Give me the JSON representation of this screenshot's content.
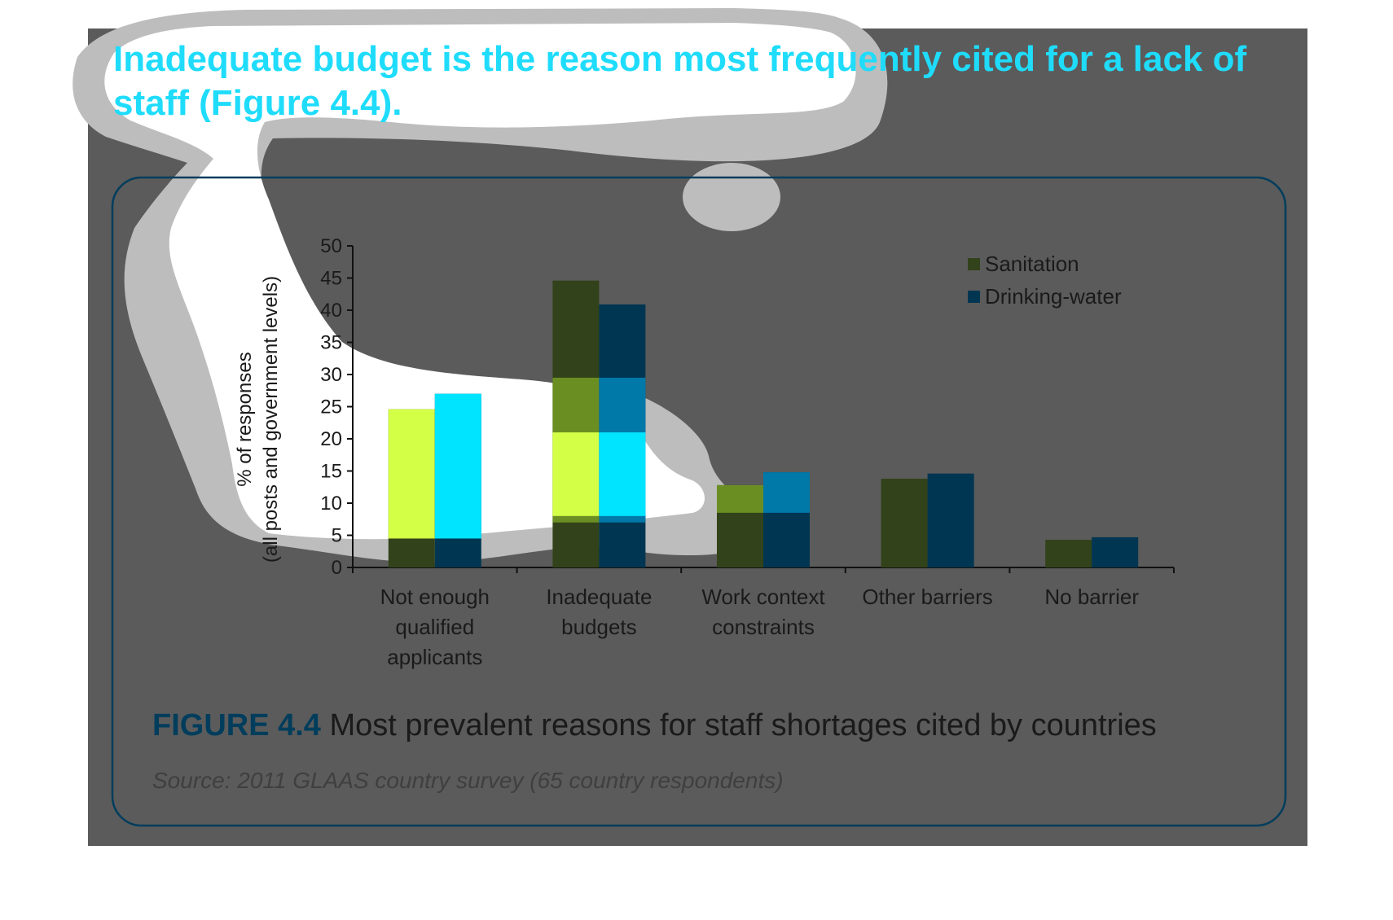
{
  "headline": "Inadequate budget is the reason most frequently cited for a lack of staff (Figure 4.4).",
  "figure": {
    "label": "FIGURE 4.4",
    "caption": " Most prevalent reasons for staff shortages cited by countries",
    "source": "Source: 2011 GLAAS country survey (65 country respondents)"
  },
  "colors": {
    "page_background": "#5b5b5b",
    "headline": "#1fdcfb",
    "panel_border": "#003d5c",
    "sanitation": "#32421a",
    "drinking_water": "#003652",
    "highlight_white": "#ffffff",
    "highlight_gray": "#bdbdbd"
  },
  "chart_data": {
    "type": "bar",
    "title": "",
    "xlabel": "",
    "ylabel": "% of responses (all posts and government levels)",
    "ylabel_lines": [
      "% of responses",
      "(all posts and government levels)"
    ],
    "ylim": [
      0,
      50
    ],
    "yticks": [
      0,
      5,
      10,
      15,
      20,
      25,
      30,
      35,
      40,
      45,
      50
    ],
    "categories": [
      [
        "Not enough",
        "qualified",
        "applicants"
      ],
      [
        "Inadequate",
        "budgets"
      ],
      [
        "Work context",
        "constraints"
      ],
      [
        "Other barriers"
      ],
      [
        "No barrier"
      ]
    ],
    "series": [
      {
        "name": "Sanitation",
        "color": "#32421a",
        "values": [
          24.6,
          44.6,
          12.8,
          13.8,
          4.3
        ]
      },
      {
        "name": "Drinking-water",
        "color": "#003652",
        "values": [
          27.0,
          40.9,
          14.8,
          14.6,
          4.7
        ]
      }
    ],
    "legend_position": "top-right",
    "grid": false
  }
}
